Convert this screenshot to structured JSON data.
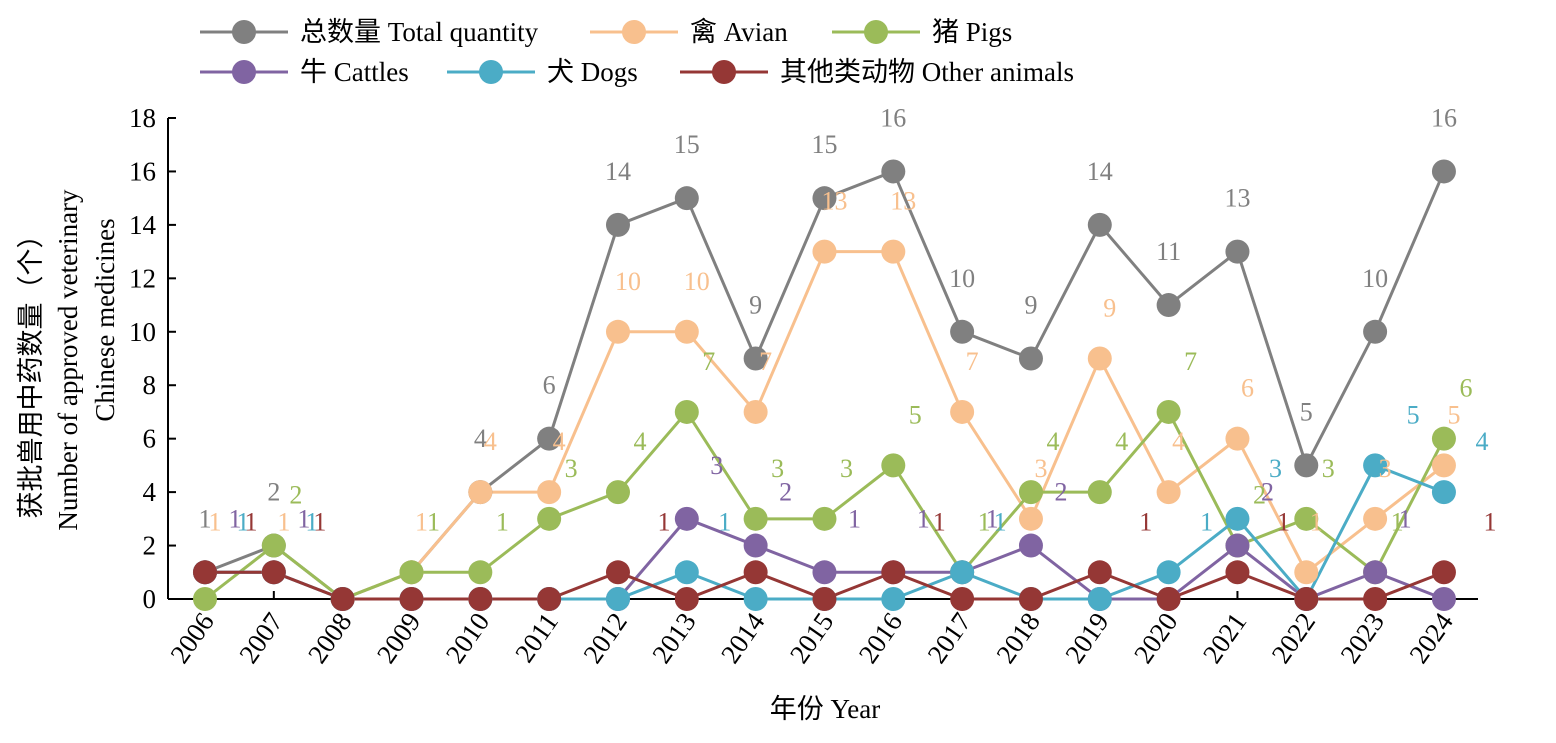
{
  "chart_data": {
    "type": "line",
    "x": [
      "2006",
      "2007",
      "2008",
      "2009",
      "2010",
      "2011",
      "2012",
      "2013",
      "2014",
      "2015",
      "2016",
      "2017",
      "2018",
      "2019",
      "2020",
      "2021",
      "2022",
      "2023",
      "2024"
    ],
    "xlabel": "年份 Year",
    "ylabel_line1": "获批兽用中药数量（个）",
    "ylabel_line2": "Number of approved veterinary",
    "ylabel_line3": "Chinese medicines",
    "ylim": [
      0,
      18
    ],
    "yticks": [
      0,
      2,
      4,
      6,
      8,
      10,
      12,
      14,
      16,
      18
    ],
    "legend_position": "top",
    "series": [
      {
        "name": "总数量 Total quantity",
        "color": "#808080",
        "values": [
          1,
          2,
          0,
          1,
          4,
          6,
          14,
          15,
          9,
          15,
          16,
          10,
          9,
          14,
          11,
          13,
          5,
          10,
          16
        ],
        "labels": [
          "1",
          "2",
          "",
          "",
          "4",
          "6",
          "14",
          "15",
          "9",
          "15",
          "16",
          "10",
          "9",
          "14",
          "11",
          "13",
          "5",
          "10",
          "16"
        ]
      },
      {
        "name": "禽 Avian",
        "color": "#F8C08E",
        "values": [
          1,
          1,
          0,
          1,
          4,
          4,
          10,
          10,
          7,
          13,
          13,
          7,
          3,
          9,
          4,
          6,
          1,
          3,
          5
        ],
        "labels": [
          "1",
          "1",
          "",
          "1",
          "4",
          "4",
          "10",
          "10",
          "7",
          "13",
          "13",
          "7",
          "3",
          "9",
          "4",
          "6",
          "1",
          "3",
          "5"
        ]
      },
      {
        "name": "猪 Pigs",
        "color": "#9BBB59",
        "values": [
          0,
          2,
          0,
          1,
          1,
          3,
          4,
          7,
          3,
          3,
          5,
          1,
          4,
          4,
          7,
          2,
          3,
          1,
          6
        ],
        "labels": [
          "",
          "2",
          "",
          "1",
          "1",
          "3",
          "4",
          "7",
          "3",
          "3",
          "5",
          "1",
          "4",
          "4",
          "7",
          "2",
          "3",
          "1",
          "6"
        ]
      },
      {
        "name": "牛 Cattles",
        "color": "#8064A2",
        "values": [
          1,
          1,
          0,
          0,
          0,
          0,
          0,
          3,
          2,
          1,
          1,
          1,
          2,
          0,
          0,
          2,
          0,
          1,
          0
        ],
        "labels": [
          "1",
          "1",
          "",
          "",
          "",
          "",
          "",
          "3",
          "2",
          "1",
          "1",
          "1",
          "2",
          "",
          "",
          "2",
          "",
          "1",
          ""
        ]
      },
      {
        "name": "犬 Dogs",
        "color": "#4BACC6",
        "values": [
          1,
          1,
          0,
          0,
          0,
          0,
          0,
          1,
          0,
          0,
          0,
          1,
          0,
          0,
          1,
          3,
          0,
          5,
          4
        ],
        "labels": [
          "1",
          "1",
          "",
          "",
          "",
          "",
          "",
          "1",
          "",
          "",
          "",
          "1",
          "",
          "",
          "1",
          "3",
          "",
          "5",
          "4"
        ]
      },
      {
        "name": "其他类动物 Other animals",
        "color": "#953735",
        "values": [
          1,
          1,
          0,
          0,
          0,
          0,
          1,
          0,
          1,
          0,
          1,
          0,
          0,
          1,
          0,
          1,
          0,
          0,
          1
        ],
        "labels": [
          "1",
          "1",
          "",
          "",
          "",
          "",
          "1",
          "",
          "",
          "",
          "1",
          "",
          "",
          "1",
          "",
          "1",
          "",
          "",
          "1"
        ]
      }
    ]
  }
}
